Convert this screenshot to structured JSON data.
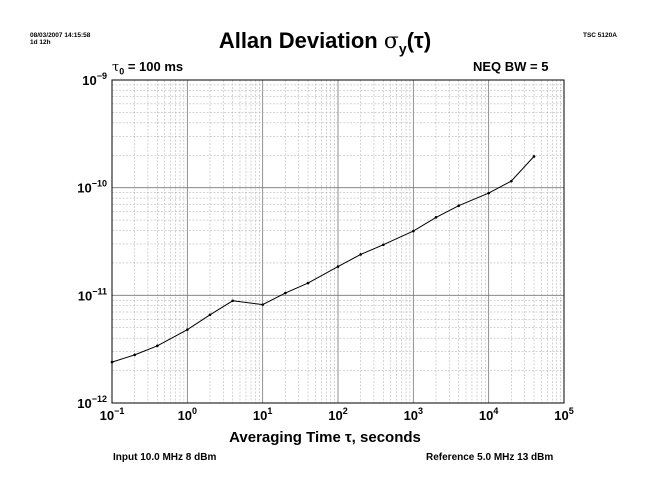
{
  "header": {
    "timestamp": "08/03/2007 14:15:58",
    "duration": "1d 12h",
    "instrument": "TSC 5120A"
  },
  "chart_data": {
    "type": "line",
    "title_main": "Allan Deviation ",
    "title_symbol": "σ",
    "title_sub": "y",
    "title_arg": "(τ)",
    "annotation_left_symbol": "τ",
    "annotation_left_sub": "0",
    "annotation_left_text": " = 100 ms",
    "annotation_right": "NEQ BW = 5",
    "xlabel": "Averaging Time τ, seconds",
    "x_scale": "log",
    "y_scale": "log",
    "xlim": [
      0.1,
      100000
    ],
    "ylim": [
      1e-12,
      1e-09
    ],
    "grid": true,
    "x_ticks": [
      {
        "value": 0.1,
        "base": "10",
        "exp": "−1"
      },
      {
        "value": 1,
        "base": "10",
        "exp": "0"
      },
      {
        "value": 10,
        "base": "10",
        "exp": "1"
      },
      {
        "value": 100,
        "base": "10",
        "exp": "2"
      },
      {
        "value": 1000,
        "base": "10",
        "exp": "3"
      },
      {
        "value": 10000,
        "base": "10",
        "exp": "4"
      },
      {
        "value": 100000,
        "base": "10",
        "exp": "5"
      }
    ],
    "y_ticks": [
      {
        "value": 1e-12,
        "base": "10",
        "exp": "−12"
      },
      {
        "value": 1e-11,
        "base": "10",
        "exp": "−11"
      },
      {
        "value": 1e-10,
        "base": "10",
        "exp": "−10"
      },
      {
        "value": 1e-09,
        "base": "10",
        "exp": "−9"
      }
    ],
    "series": [
      {
        "x": [
          0.1,
          0.2,
          0.4,
          1,
          2,
          4,
          10,
          20,
          40,
          100,
          200,
          400,
          1000,
          2000,
          4000,
          10000,
          20000,
          40000
        ],
        "y": [
          2.4e-12,
          2.8e-12,
          3.4e-12,
          4.8e-12,
          6.6e-12,
          8.9e-12,
          8.2e-12,
          1.05e-11,
          1.3e-11,
          1.85e-11,
          2.4e-11,
          2.95e-11,
          3.95e-11,
          5.3e-11,
          6.8e-11,
          8.9e-11,
          1.15e-10,
          1.95e-10
        ]
      }
    ]
  },
  "footer": {
    "input": "Input 10.0 MHz 8 dBm",
    "reference": "Reference 5.0 MHz 13 dBm"
  }
}
